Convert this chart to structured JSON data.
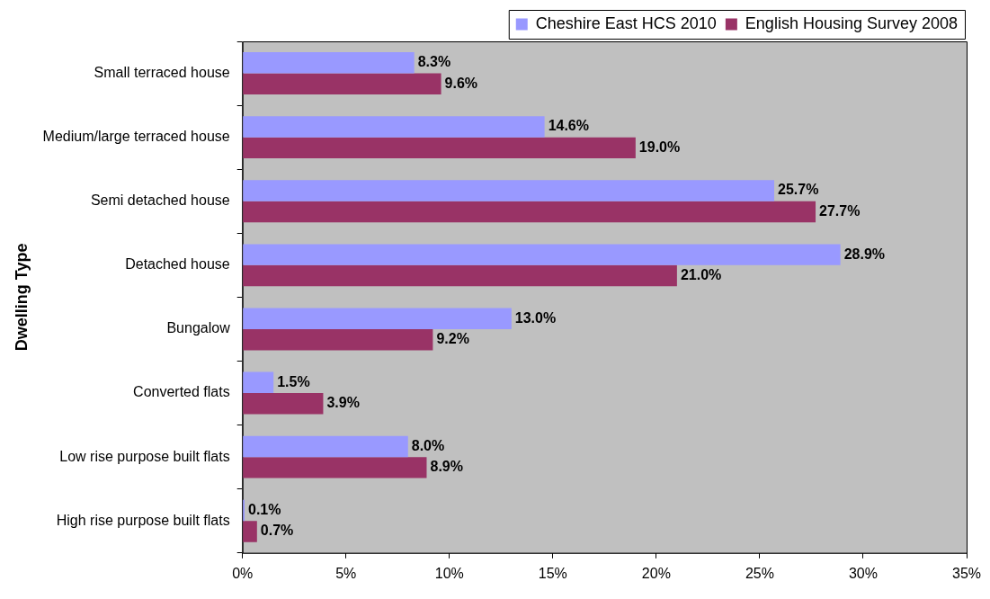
{
  "chart_data": {
    "type": "bar",
    "orientation": "horizontal",
    "ylabel": "Dwelling Type",
    "categories": [
      "Small terraced house",
      "Medium/large terraced house",
      "Semi detached house",
      "Detached house",
      "Bungalow",
      "Converted flats",
      "Low rise purpose built flats",
      "High rise purpose built flats"
    ],
    "series": [
      {
        "name": "Cheshire East HCS 2010",
        "color": "#9999ff",
        "values": [
          8.3,
          14.6,
          25.7,
          28.9,
          13.0,
          1.5,
          8.0,
          0.1
        ],
        "value_labels": [
          "8.3%",
          "14.6%",
          "25.7%",
          "28.9%",
          "13.0%",
          "1.5%",
          "8.0%",
          "0.1%"
        ]
      },
      {
        "name": "English Housing Survey 2008",
        "color": "#993366",
        "values": [
          9.6,
          19.0,
          27.7,
          21.0,
          9.2,
          3.9,
          8.9,
          0.7
        ],
        "value_labels": [
          "9.6%",
          "19.0%",
          "27.7%",
          "21.0%",
          "9.2%",
          "3.9%",
          "8.9%",
          "0.7%"
        ]
      }
    ],
    "xlim": [
      0,
      35
    ],
    "xticks": [
      {
        "value": 0,
        "label": "0%"
      },
      {
        "value": 5,
        "label": "5%"
      },
      {
        "value": 10,
        "label": "10%"
      },
      {
        "value": 15,
        "label": "15%"
      },
      {
        "value": 20,
        "label": "20%"
      },
      {
        "value": 25,
        "label": "25%"
      },
      {
        "value": 30,
        "label": "30%"
      },
      {
        "value": 35,
        "label": "35%"
      }
    ],
    "grid": false,
    "legend": "top"
  }
}
